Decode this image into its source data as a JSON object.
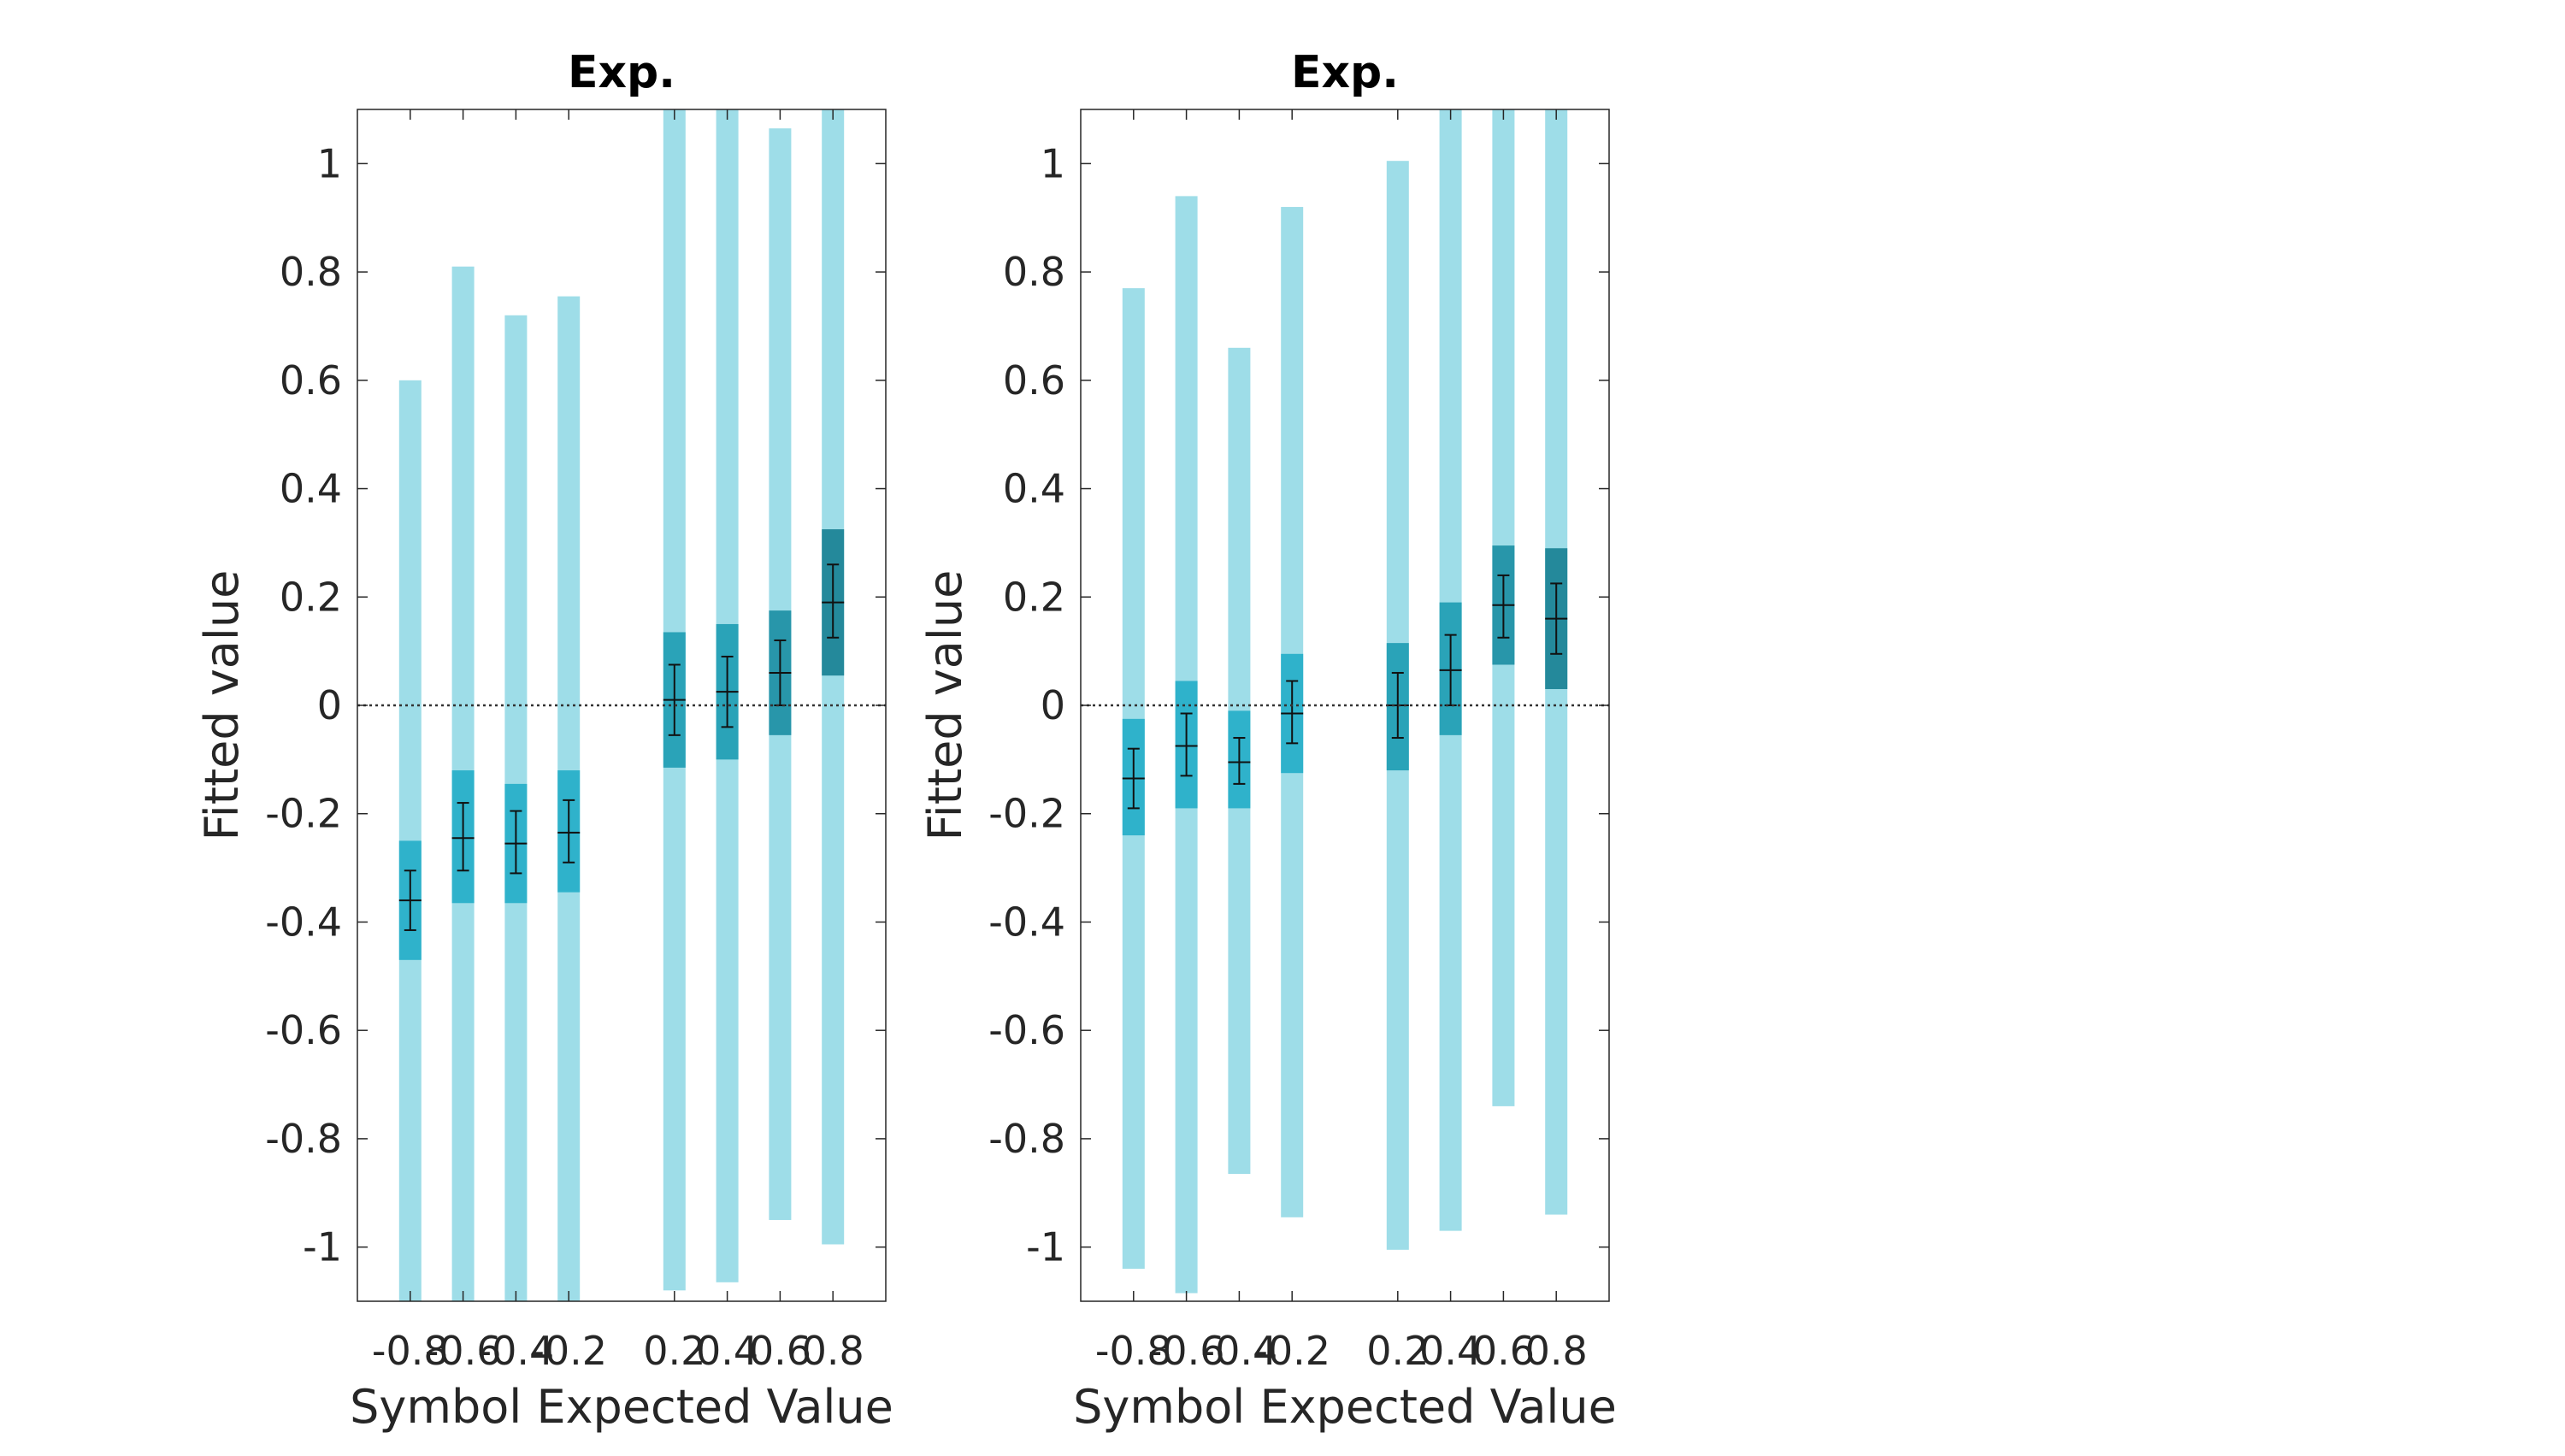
{
  "chart_data": [
    {
      "type": "bar",
      "title": "Exp.",
      "xlabel": "Symbol Expected Value",
      "ylabel": "Fitted value",
      "x": [
        -0.8,
        -0.6,
        -0.4,
        -0.2,
        0.2,
        0.4,
        0.6,
        0.8
      ],
      "x_tick_labels": [
        "-0.8",
        "-0.6",
        "-0.4",
        "-0.2",
        "0.2",
        "0.4",
        "0.6",
        "0.8"
      ],
      "ylim": [
        -1.1,
        1.1
      ],
      "y_ticks": [
        -1,
        -0.8,
        -0.6,
        -0.4,
        -0.2,
        0,
        0.2,
        0.4,
        0.6,
        0.8,
        1
      ],
      "y_tick_labels": [
        "-1",
        "-0.8",
        "-0.6",
        "-0.4",
        "-0.2",
        "0",
        "0.2",
        "0.4",
        "0.6",
        "0.8",
        "1"
      ],
      "reference_line_y": 0,
      "grid": false,
      "series": [
        {
          "mean": [
            -0.36,
            -0.245,
            -0.255,
            -0.235,
            0.01,
            0.025,
            0.06,
            0.19
          ],
          "err_low": [
            -0.415,
            -0.305,
            -0.31,
            -0.29,
            -0.055,
            -0.04,
            0.0,
            0.125
          ],
          "err_high": [
            -0.305,
            -0.18,
            -0.195,
            -0.175,
            0.075,
            0.09,
            0.12,
            0.26
          ],
          "inner_low": [
            -0.47,
            -0.365,
            -0.365,
            -0.345,
            -0.115,
            -0.1,
            -0.055,
            0.055
          ],
          "inner_high": [
            -0.25,
            -0.12,
            -0.145,
            -0.12,
            0.135,
            0.15,
            0.175,
            0.325
          ],
          "outer_low": [
            -1.1,
            -1.1,
            -1.1,
            -1.1,
            -1.08,
            -1.065,
            -0.95,
            -0.995
          ],
          "outer_high": [
            0.6,
            0.81,
            0.72,
            0.755,
            1.1,
            1.1,
            1.065,
            1.1
          ]
        }
      ]
    },
    {
      "type": "bar",
      "title": "Exp.",
      "xlabel": "Symbol Expected Value",
      "ylabel": "Fitted value",
      "x": [
        -0.8,
        -0.6,
        -0.4,
        -0.2,
        0.2,
        0.4,
        0.6,
        0.8
      ],
      "x_tick_labels": [
        "-0.8",
        "-0.6",
        "-0.4",
        "-0.2",
        "0.2",
        "0.4",
        "0.6",
        "0.8"
      ],
      "ylim": [
        -1.1,
        1.1
      ],
      "y_ticks": [
        -1,
        -0.8,
        -0.6,
        -0.4,
        -0.2,
        0,
        0.2,
        0.4,
        0.6,
        0.8,
        1
      ],
      "y_tick_labels": [
        "-1",
        "-0.8",
        "-0.6",
        "-0.4",
        "-0.2",
        "0",
        "0.2",
        "0.4",
        "0.6",
        "0.8",
        "1"
      ],
      "reference_line_y": 0,
      "grid": false,
      "series": [
        {
          "mean": [
            -0.135,
            -0.075,
            -0.105,
            -0.015,
            0.0,
            0.065,
            0.185,
            0.16
          ],
          "err_low": [
            -0.19,
            -0.13,
            -0.145,
            -0.07,
            -0.06,
            0.0,
            0.125,
            0.095
          ],
          "err_high": [
            -0.08,
            -0.015,
            -0.06,
            0.045,
            0.06,
            0.13,
            0.24,
            0.225
          ],
          "inner_low": [
            -0.24,
            -0.19,
            -0.19,
            -0.125,
            -0.12,
            -0.055,
            0.075,
            0.03
          ],
          "inner_high": [
            -0.025,
            0.045,
            -0.01,
            0.095,
            0.115,
            0.19,
            0.295,
            0.29
          ],
          "outer_low": [
            -1.04,
            -1.085,
            -0.865,
            -0.945,
            -1.005,
            -0.97,
            -0.74,
            -0.94
          ],
          "outer_high": [
            0.77,
            0.94,
            0.66,
            0.92,
            1.005,
            1.1,
            1.1,
            1.1
          ]
        }
      ]
    }
  ],
  "colors": {
    "outer": "#9edde8",
    "inner": [
      "#2fb2cb",
      "#2fb2cb",
      "#2fb2cb",
      "#2fb2cb",
      "#2aa3b8",
      "#2aa3b8",
      "#2896aa",
      "#24899b"
    ],
    "axis": "#262626",
    "text": "#262626",
    "reference_line": "#333333"
  }
}
